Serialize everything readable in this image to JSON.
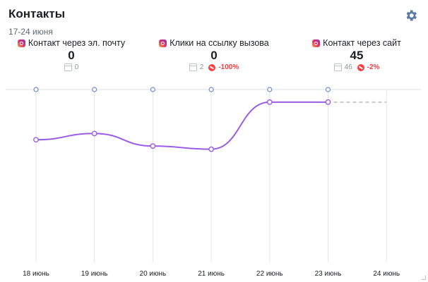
{
  "header": {
    "title": "Контакты",
    "date_range": "17-24 июня",
    "settings_icon": "gear-icon"
  },
  "metrics": [
    {
      "label": "Контакт через эл. почту",
      "value": "0",
      "previous": "0",
      "change": ""
    },
    {
      "label": "Клики на ссылку вызова",
      "value": "0",
      "previous": "2",
      "change": "-100%"
    },
    {
      "label": "Контакт через сайт",
      "value": "45",
      "previous": "46",
      "change": "-2%"
    }
  ],
  "colors": {
    "line": "#9b5de5",
    "gridline": "#e4e6eb",
    "top_axis": "#6e89d6",
    "negative": "#fa3e3e",
    "forecast": "#c8c8c8"
  },
  "chart_data": {
    "type": "line",
    "categories": [
      "18 июнь",
      "19 июнь",
      "20 июнь",
      "21 июнь",
      "22 июнь",
      "23 июнь",
      "24 июнь"
    ],
    "series": [
      {
        "values": [
          39,
          41,
          37,
          36,
          51,
          51,
          null
        ]
      }
    ],
    "forecast": {
      "from": "23 июнь",
      "to": "24 июнь",
      "value": 51
    },
    "ylim": [
      0,
      55
    ],
    "xlabel": "",
    "ylabel": "",
    "grid": "vertical"
  }
}
